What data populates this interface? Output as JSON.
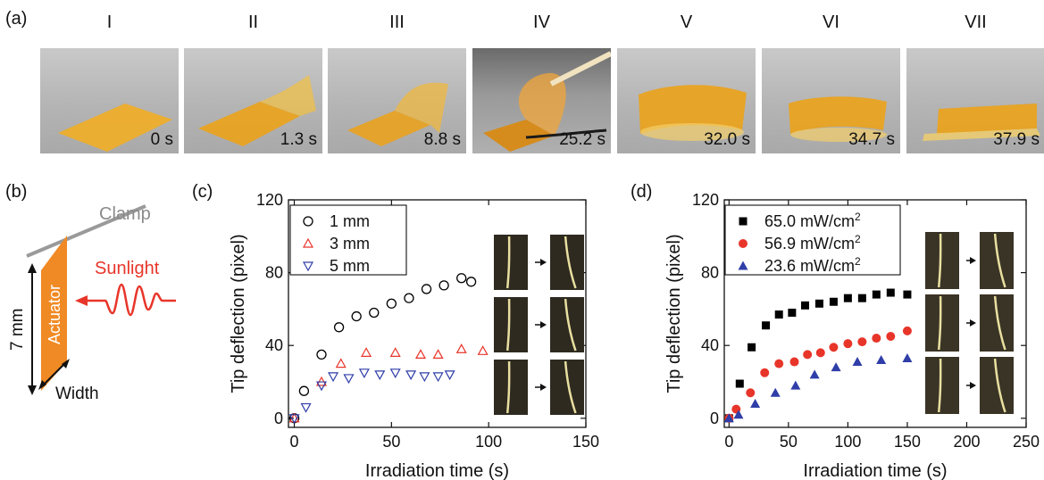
{
  "panels": {
    "a": {
      "label": "(a)",
      "frames": [
        {
          "roman": "I",
          "time": "0 s"
        },
        {
          "roman": "II",
          "time": "1.3 s"
        },
        {
          "roman": "III",
          "time": "8.8 s"
        },
        {
          "roman": "IV",
          "time": "25.2 s"
        },
        {
          "roman": "V",
          "time": "32.0 s"
        },
        {
          "roman": "VI",
          "time": "34.7 s"
        },
        {
          "roman": "VII",
          "time": "37.9 s"
        }
      ]
    },
    "b": {
      "label": "(b)",
      "clamp": "Clamp",
      "sunlight": "Sunlight",
      "actuator": "Actuator",
      "length": "7 mm",
      "width": "Width",
      "colors": {
        "actuator": "#f08a24",
        "light": "#e8352a",
        "clamp": "#9a9a9a"
      }
    },
    "c": {
      "label": "(c)"
    },
    "d": {
      "label": "(d)"
    }
  },
  "chart_data": [
    {
      "type": "scatter",
      "title": "",
      "xlabel": "Irradiation time (s)",
      "ylabel": "Tip deflection (pixel)",
      "xlim": [
        -3,
        150
      ],
      "ylim": [
        -5,
        120
      ],
      "xticks": [
        0,
        50,
        100,
        150
      ],
      "yticks": [
        0,
        40,
        80,
        120
      ],
      "legend_position": "top-left",
      "series": [
        {
          "name": "1 mm",
          "marker": "circle-open",
          "color": "#000000",
          "x": [
            0,
            5,
            14,
            23,
            32,
            41,
            50,
            59,
            68,
            77,
            86,
            91
          ],
          "y": [
            0,
            15,
            35,
            50,
            56,
            58,
            63,
            66,
            71,
            73,
            77,
            75
          ]
        },
        {
          "name": "3 mm",
          "marker": "triangle-up-open",
          "color": "#e8352a",
          "x": [
            0,
            14,
            24,
            37,
            52,
            65,
            74,
            86,
            97
          ],
          "y": [
            0,
            20,
            30,
            36,
            36,
            35,
            35,
            38,
            37
          ]
        },
        {
          "name": "5 mm",
          "marker": "triangle-down-open",
          "color": "#2f3ea8",
          "x": [
            0,
            6,
            14,
            20,
            28,
            36,
            44,
            52,
            60,
            67,
            74,
            80
          ],
          "y": [
            0,
            6,
            18,
            23,
            22,
            25,
            24,
            25,
            24,
            23,
            23,
            24
          ]
        }
      ]
    },
    {
      "type": "scatter",
      "title": "",
      "xlabel": "Irradiation time (s)",
      "ylabel": "Tip deflection (pixel)",
      "xlim": [
        -4,
        250
      ],
      "ylim": [
        -5,
        120
      ],
      "xticks": [
        0,
        50,
        100,
        150,
        200,
        250
      ],
      "yticks": [
        0,
        40,
        80,
        120
      ],
      "legend_position": "top-left",
      "series": [
        {
          "name": "65.0 mW/cm",
          "sup": "2",
          "marker": "square",
          "color": "#000000",
          "x": [
            0,
            9,
            19,
            31,
            42,
            53,
            64,
            76,
            88,
            100,
            112,
            124,
            136,
            150
          ],
          "y": [
            0,
            19,
            39,
            51,
            57,
            58,
            62,
            63,
            64,
            66,
            66,
            68,
            69,
            68
          ]
        },
        {
          "name": "56.9 mW/cm",
          "sup": "2",
          "marker": "circle",
          "color": "#e8352a",
          "x": [
            0,
            6,
            18,
            30,
            42,
            55,
            66,
            77,
            88,
            100,
            112,
            124,
            136,
            150
          ],
          "y": [
            0,
            5,
            14,
            25,
            30,
            31,
            35,
            36,
            39,
            41,
            42,
            44,
            45,
            48
          ]
        },
        {
          "name": "23.6 mW/cm",
          "sup": "2",
          "marker": "triangle-up",
          "color": "#2f3ea8",
          "x": [
            0,
            8,
            22,
            39,
            56,
            72,
            90,
            108,
            128,
            150
          ],
          "y": [
            0,
            2,
            8,
            14,
            18,
            24,
            28,
            31,
            32,
            33
          ]
        }
      ]
    }
  ]
}
